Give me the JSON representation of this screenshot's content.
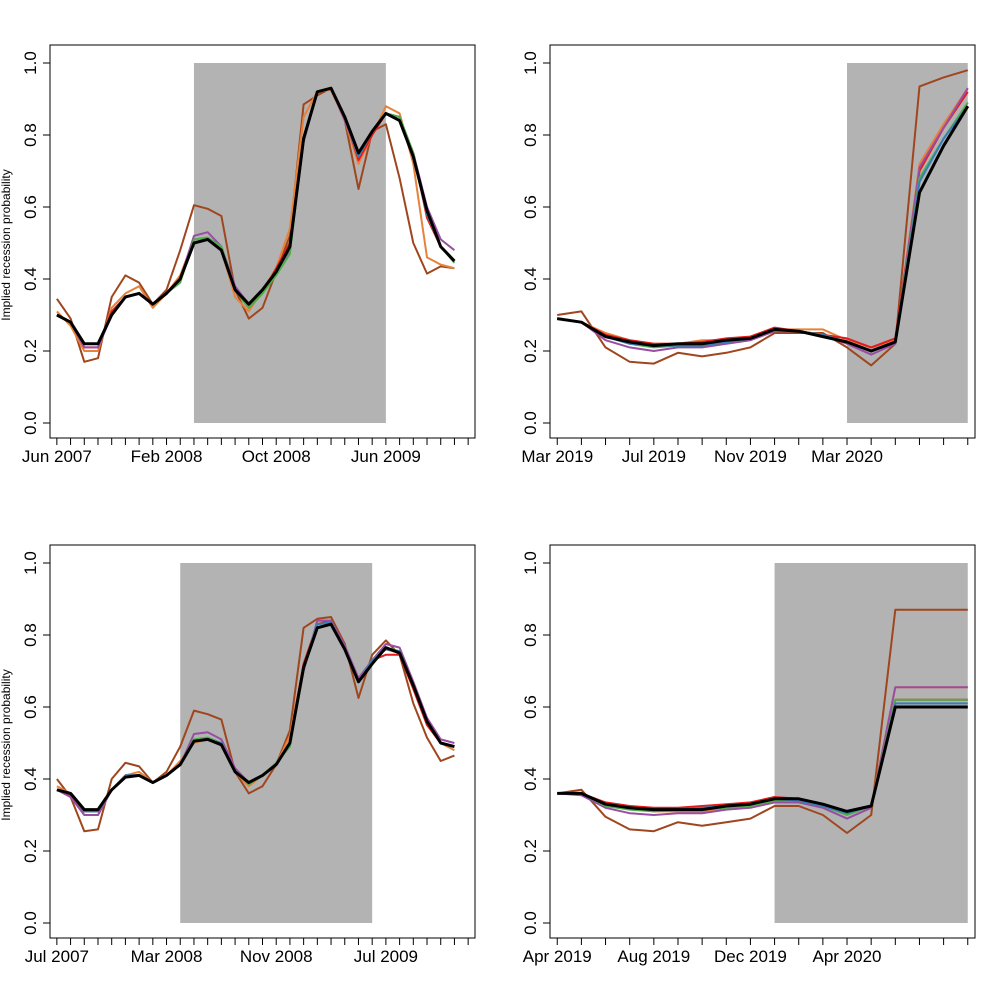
{
  "ylabel": "Implied recession probability",
  "colors": {
    "shade": "#b3b3b3",
    "black": "#000000",
    "brown": "#a0461e",
    "orange": "#e8823a",
    "red": "#e41a1c",
    "purple": "#984ea3",
    "green": "#4daf4a",
    "blue": "#377eb8"
  },
  "chart_data": [
    {
      "type": "line",
      "ylim": [
        0,
        1
      ],
      "yticks": [
        0.0,
        0.2,
        0.4,
        0.6,
        0.8,
        1.0
      ],
      "ytick_labels": [
        "0.0",
        "0.2",
        "0.4",
        "0.6",
        "0.8",
        "1.0"
      ],
      "xlim": [
        -0.5,
        30.5
      ],
      "xticks_major": [
        0,
        8,
        16,
        24
      ],
      "xtick_labels": [
        "Jun 2007",
        "Feb 2008",
        "Oct 2008",
        "Jun 2009"
      ],
      "xtick_minor_count": 31,
      "shade": [
        10,
        24
      ],
      "ylabel": "Implied recession probability",
      "series": [
        {
          "color": "brown",
          "values": [
            0.345,
            0.29,
            0.17,
            0.18,
            0.35,
            0.41,
            0.39,
            0.33,
            0.37,
            0.48,
            0.605,
            0.595,
            0.575,
            0.37,
            0.29,
            0.32,
            0.42,
            0.52,
            0.885,
            0.91,
            0.93,
            0.84,
            0.65,
            0.81,
            0.83,
            0.68,
            0.5,
            0.415,
            0.435,
            0.43
          ]
        },
        {
          "color": "orange",
          "values": [
            0.31,
            0.27,
            0.2,
            0.2,
            0.32,
            0.36,
            0.38,
            0.32,
            0.36,
            0.41,
            0.51,
            0.515,
            0.48,
            0.35,
            0.31,
            0.37,
            0.43,
            0.54,
            0.85,
            0.92,
            0.925,
            0.84,
            0.72,
            0.8,
            0.88,
            0.86,
            0.72,
            0.46,
            0.44,
            0.43
          ]
        },
        {
          "color": "red",
          "values": [
            0.3,
            0.28,
            0.21,
            0.21,
            0.31,
            0.35,
            0.36,
            0.33,
            0.36,
            0.4,
            0.5,
            0.51,
            0.48,
            0.37,
            0.32,
            0.36,
            0.43,
            0.5,
            0.79,
            0.92,
            0.93,
            0.85,
            0.73,
            0.8,
            0.86,
            0.84,
            0.75,
            0.57,
            0.49,
            0.45
          ]
        },
        {
          "color": "purple",
          "values": [
            0.3,
            0.28,
            0.21,
            0.21,
            0.3,
            0.35,
            0.36,
            0.33,
            0.36,
            0.4,
            0.52,
            0.53,
            0.49,
            0.38,
            0.33,
            0.37,
            0.42,
            0.48,
            0.78,
            0.92,
            0.93,
            0.84,
            0.74,
            0.81,
            0.86,
            0.85,
            0.75,
            0.6,
            0.51,
            0.48
          ]
        },
        {
          "color": "green",
          "values": [
            0.3,
            0.28,
            0.22,
            0.22,
            0.3,
            0.35,
            0.36,
            0.33,
            0.36,
            0.39,
            0.51,
            0.515,
            0.49,
            0.37,
            0.32,
            0.36,
            0.41,
            0.47,
            0.79,
            0.92,
            0.93,
            0.85,
            0.74,
            0.81,
            0.86,
            0.85,
            0.75,
            0.58,
            0.49,
            0.445
          ]
        },
        {
          "color": "blue",
          "values": [
            0.3,
            0.28,
            0.22,
            0.22,
            0.3,
            0.35,
            0.36,
            0.33,
            0.36,
            0.4,
            0.5,
            0.51,
            0.48,
            0.37,
            0.33,
            0.37,
            0.42,
            0.49,
            0.79,
            0.92,
            0.93,
            0.85,
            0.74,
            0.81,
            0.86,
            0.84,
            0.74,
            0.58,
            0.49,
            0.45
          ]
        },
        {
          "color": "black",
          "width": 3,
          "values": [
            0.3,
            0.28,
            0.22,
            0.22,
            0.3,
            0.35,
            0.36,
            0.33,
            0.36,
            0.4,
            0.5,
            0.51,
            0.48,
            0.37,
            0.33,
            0.37,
            0.42,
            0.49,
            0.79,
            0.92,
            0.93,
            0.85,
            0.75,
            0.81,
            0.86,
            0.84,
            0.74,
            0.59,
            0.49,
            0.45
          ]
        }
      ]
    },
    {
      "type": "line",
      "ylim": [
        0,
        1
      ],
      "yticks": [
        0.0,
        0.2,
        0.4,
        0.6,
        0.8,
        1.0
      ],
      "ytick_labels": [
        "0.0",
        "0.2",
        "0.4",
        "0.6",
        "0.8",
        "1.0"
      ],
      "xlim": [
        -0.3,
        17.3
      ],
      "xticks_major": [
        0,
        4,
        8,
        12
      ],
      "xtick_labels": [
        "Mar 2019",
        "Jul 2019",
        "Nov 2019",
        "Mar 2020"
      ],
      "xtick_minor_count": 18,
      "shade": [
        12,
        17
      ],
      "ylabel": "",
      "series": [
        {
          "color": "brown",
          "values": [
            0.3,
            0.31,
            0.21,
            0.17,
            0.165,
            0.195,
            0.185,
            0.195,
            0.21,
            0.25,
            0.25,
            0.25,
            0.21,
            0.16,
            0.22,
            0.935,
            0.96,
            0.98
          ]
        },
        {
          "color": "orange",
          "values": [
            0.29,
            0.28,
            0.25,
            0.23,
            0.22,
            0.22,
            0.23,
            0.23,
            0.24,
            0.26,
            0.26,
            0.26,
            0.23,
            0.21,
            0.23,
            0.72,
            0.83,
            0.93
          ]
        },
        {
          "color": "red",
          "values": [
            0.29,
            0.28,
            0.245,
            0.23,
            0.22,
            0.22,
            0.225,
            0.235,
            0.24,
            0.265,
            0.255,
            0.245,
            0.235,
            0.21,
            0.235,
            0.7,
            0.82,
            0.92
          ]
        },
        {
          "color": "purple",
          "values": [
            0.29,
            0.28,
            0.23,
            0.21,
            0.2,
            0.21,
            0.21,
            0.22,
            0.23,
            0.255,
            0.255,
            0.245,
            0.22,
            0.19,
            0.22,
            0.71,
            0.82,
            0.93
          ]
        },
        {
          "color": "green",
          "values": [
            0.29,
            0.28,
            0.24,
            0.22,
            0.21,
            0.215,
            0.215,
            0.225,
            0.235,
            0.26,
            0.255,
            0.245,
            0.225,
            0.2,
            0.225,
            0.68,
            0.79,
            0.89
          ]
        },
        {
          "color": "blue",
          "values": [
            0.29,
            0.28,
            0.24,
            0.22,
            0.215,
            0.215,
            0.215,
            0.225,
            0.235,
            0.26,
            0.255,
            0.245,
            0.225,
            0.2,
            0.225,
            0.67,
            0.79,
            0.88
          ]
        },
        {
          "color": "black",
          "width": 3,
          "values": [
            0.29,
            0.28,
            0.24,
            0.225,
            0.215,
            0.22,
            0.22,
            0.23,
            0.235,
            0.26,
            0.255,
            0.24,
            0.225,
            0.2,
            0.225,
            0.64,
            0.77,
            0.88
          ]
        }
      ]
    },
    {
      "type": "line",
      "ylim": [
        0,
        1
      ],
      "yticks": [
        0.0,
        0.2,
        0.4,
        0.6,
        0.8,
        1.0
      ],
      "ytick_labels": [
        "0.0",
        "0.2",
        "0.4",
        "0.6",
        "0.8",
        "1.0"
      ],
      "xlim": [
        -0.5,
        30.5
      ],
      "xticks_major": [
        0,
        8,
        16,
        24
      ],
      "xtick_labels": [
        "Jul 2007",
        "Mar 2008",
        "Nov 2008",
        "Jul 2009"
      ],
      "xtick_minor_count": 31,
      "shade": [
        9,
        23
      ],
      "ylabel": "Implied recession probability",
      "series": [
        {
          "color": "brown",
          "values": [
            0.4,
            0.35,
            0.255,
            0.26,
            0.4,
            0.445,
            0.435,
            0.39,
            0.42,
            0.49,
            0.59,
            0.58,
            0.565,
            0.42,
            0.36,
            0.38,
            0.44,
            0.535,
            0.82,
            0.845,
            0.85,
            0.775,
            0.625,
            0.745,
            0.785,
            0.745,
            0.61,
            0.515,
            0.45,
            0.465
          ]
        },
        {
          "color": "orange",
          "values": [
            0.38,
            0.36,
            0.3,
            0.3,
            0.37,
            0.41,
            0.42,
            0.39,
            0.41,
            0.45,
            0.5,
            0.51,
            0.5,
            0.42,
            0.38,
            0.41,
            0.44,
            0.52,
            0.72,
            0.83,
            0.84,
            0.76,
            0.67,
            0.73,
            0.76,
            0.75,
            0.66,
            0.55,
            0.5,
            0.48
          ]
        },
        {
          "color": "red",
          "values": [
            0.37,
            0.35,
            0.31,
            0.31,
            0.37,
            0.41,
            0.41,
            0.39,
            0.41,
            0.44,
            0.505,
            0.51,
            0.495,
            0.42,
            0.39,
            0.41,
            0.44,
            0.5,
            0.72,
            0.83,
            0.84,
            0.76,
            0.67,
            0.73,
            0.745,
            0.745,
            0.65,
            0.55,
            0.5,
            0.49
          ]
        },
        {
          "color": "purple",
          "values": [
            0.37,
            0.35,
            0.3,
            0.3,
            0.37,
            0.41,
            0.41,
            0.39,
            0.41,
            0.44,
            0.525,
            0.53,
            0.51,
            0.43,
            0.39,
            0.41,
            0.44,
            0.5,
            0.7,
            0.84,
            0.84,
            0.77,
            0.68,
            0.73,
            0.775,
            0.765,
            0.67,
            0.57,
            0.51,
            0.5
          ]
        },
        {
          "color": "green",
          "values": [
            0.37,
            0.36,
            0.31,
            0.31,
            0.37,
            0.41,
            0.41,
            0.39,
            0.41,
            0.44,
            0.51,
            0.515,
            0.5,
            0.42,
            0.385,
            0.41,
            0.445,
            0.49,
            0.71,
            0.83,
            0.835,
            0.76,
            0.67,
            0.73,
            0.765,
            0.755,
            0.66,
            0.56,
            0.5,
            0.49
          ]
        },
        {
          "color": "blue",
          "values": [
            0.37,
            0.36,
            0.31,
            0.31,
            0.37,
            0.41,
            0.41,
            0.39,
            0.41,
            0.44,
            0.505,
            0.51,
            0.5,
            0.42,
            0.39,
            0.41,
            0.44,
            0.5,
            0.71,
            0.83,
            0.835,
            0.76,
            0.67,
            0.73,
            0.76,
            0.755,
            0.66,
            0.56,
            0.5,
            0.49
          ]
        },
        {
          "color": "black",
          "width": 3,
          "values": [
            0.37,
            0.36,
            0.315,
            0.315,
            0.37,
            0.405,
            0.41,
            0.39,
            0.41,
            0.44,
            0.505,
            0.51,
            0.495,
            0.42,
            0.39,
            0.41,
            0.44,
            0.5,
            0.71,
            0.82,
            0.83,
            0.76,
            0.67,
            0.72,
            0.765,
            0.75,
            0.66,
            0.56,
            0.5,
            0.49
          ]
        }
      ]
    },
    {
      "type": "line",
      "ylim": [
        0,
        1
      ],
      "yticks": [
        0.0,
        0.2,
        0.4,
        0.6,
        0.8,
        1.0
      ],
      "ytick_labels": [
        "0.0",
        "0.2",
        "0.4",
        "0.6",
        "0.8",
        "1.0"
      ],
      "xlim": [
        -0.3,
        17.3
      ],
      "xticks_major": [
        0,
        4,
        8,
        12
      ],
      "xtick_labels": [
        "Apr 2019",
        "Aug 2019",
        "Dec 2019",
        "Apr 2020"
      ],
      "xtick_minor_count": 18,
      "shade": [
        9,
        17
      ],
      "ylabel": "",
      "series": [
        {
          "color": "brown",
          "values": [
            0.36,
            0.37,
            0.295,
            0.26,
            0.255,
            0.28,
            0.27,
            0.28,
            0.29,
            0.325,
            0.325,
            0.3,
            0.25,
            0.3,
            0.87,
            0.87,
            0.87,
            0.87
          ]
        },
        {
          "color": "orange",
          "values": [
            0.36,
            0.36,
            0.33,
            0.32,
            0.31,
            0.31,
            0.31,
            0.32,
            0.325,
            0.345,
            0.345,
            0.33,
            0.31,
            0.325,
            0.655,
            0.655,
            0.655,
            0.655
          ]
        },
        {
          "color": "red",
          "values": [
            0.36,
            0.36,
            0.335,
            0.325,
            0.32,
            0.32,
            0.325,
            0.33,
            0.335,
            0.35,
            0.345,
            0.33,
            0.31,
            0.325,
            0.62,
            0.62,
            0.62,
            0.62
          ]
        },
        {
          "color": "purple",
          "values": [
            0.36,
            0.355,
            0.32,
            0.305,
            0.3,
            0.305,
            0.305,
            0.315,
            0.32,
            0.335,
            0.335,
            0.32,
            0.29,
            0.32,
            0.655,
            0.655,
            0.655,
            0.655
          ]
        },
        {
          "color": "green",
          "values": [
            0.36,
            0.36,
            0.325,
            0.315,
            0.31,
            0.315,
            0.315,
            0.32,
            0.325,
            0.34,
            0.34,
            0.325,
            0.3,
            0.325,
            0.62,
            0.62,
            0.62,
            0.62
          ]
        },
        {
          "color": "blue",
          "values": [
            0.36,
            0.36,
            0.33,
            0.32,
            0.315,
            0.315,
            0.32,
            0.325,
            0.33,
            0.345,
            0.34,
            0.325,
            0.305,
            0.325,
            0.61,
            0.61,
            0.61,
            0.61
          ]
        },
        {
          "color": "black",
          "width": 3,
          "values": [
            0.36,
            0.36,
            0.33,
            0.32,
            0.315,
            0.315,
            0.315,
            0.325,
            0.33,
            0.345,
            0.345,
            0.33,
            0.31,
            0.325,
            0.6,
            0.6,
            0.6,
            0.6
          ]
        }
      ]
    }
  ]
}
